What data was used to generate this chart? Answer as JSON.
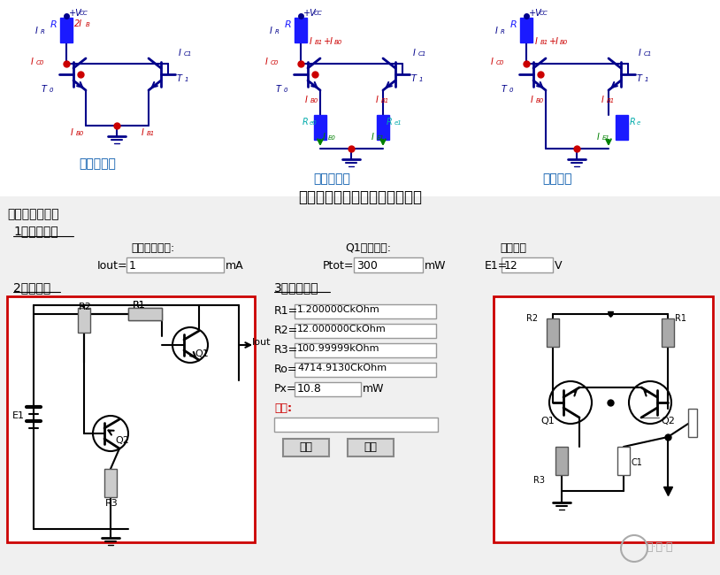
{
  "title": "典型电流源（配置相同的电路）",
  "section_title": "恒流源参数计算",
  "section1": "1、输入参数",
  "section2": "2、电路图",
  "section3": "3、输出结果",
  "label_iout": "希望的电流值:",
  "label_ptot": "Q1耗散功率:",
  "label_e1": "电源电压",
  "iout_label": "Iout=",
  "iout_val": "1",
  "iout_unit": "mA",
  "ptot_label": "Ptot=",
  "ptot_val": "300",
  "ptot_unit": "mW",
  "e1_label": "E1=",
  "e1_val": "12",
  "e1_unit": "V",
  "r1_label": "R1=",
  "r1_val": "1.200000CkOhm",
  "r2_label": "R2=",
  "r2_val": "12.000000CkOhm",
  "r3_label": "R3=",
  "r3_val": "100.99999kOhm",
  "ro_label": "Ro=",
  "ro_val": "4714.9130CkOhm",
  "px_label": "Px=",
  "px_val": "10.8",
  "px_unit": "mW",
  "warning_label": "警告:",
  "btn_calc": "计算",
  "btn_reset": "重置",
  "circuit1_label": "镜像电流源",
  "circuit2_label": "比例电流源",
  "circuit3_label": "微电流源",
  "bg_color": "#f0f0f0",
  "white": "#ffffff",
  "blue_dark": "#00008B",
  "red_color": "#cc0000",
  "blue_color": "#0000cc",
  "green_color": "#008000",
  "box_border": "#cc0000",
  "res_blue": "#1a1aff",
  "watermark_color": "#c0c0c0",
  "top_bg": "#ffffff"
}
